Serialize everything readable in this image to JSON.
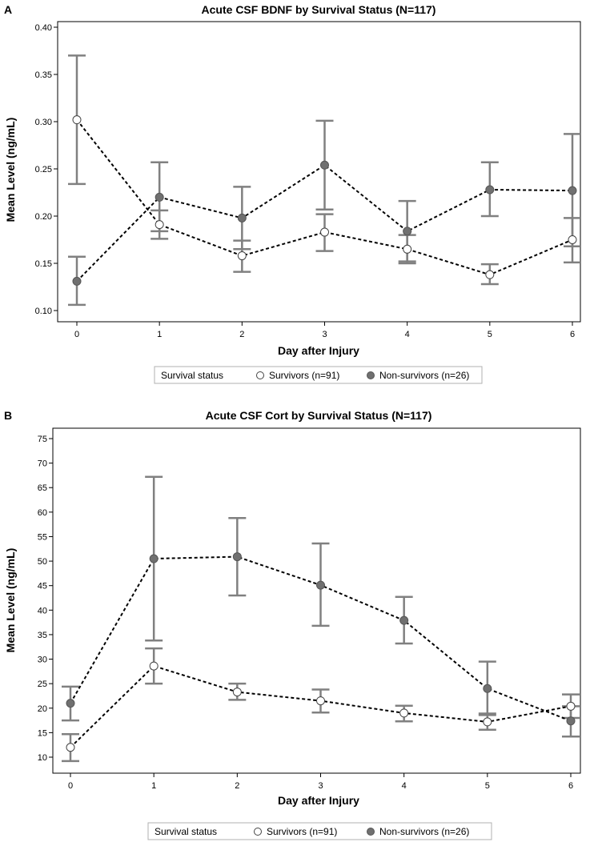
{
  "chart_data": [
    {
      "panel": "A",
      "type": "line",
      "title": "Acute CSF BDNF by Survival Status (N=117)",
      "xlabel": "Day after Injury",
      "ylabel": "Mean Level (ng/mL)",
      "xlim": [
        0,
        6
      ],
      "ylim": [
        0.1,
        0.4
      ],
      "xticks": [
        "0",
        "1",
        "2",
        "3",
        "4",
        "5",
        "6"
      ],
      "yticks": [
        "0.10",
        "0.15",
        "0.20",
        "0.25",
        "0.30",
        "0.35",
        "0.40"
      ],
      "x": [
        0,
        1,
        2,
        3,
        4,
        5,
        6
      ],
      "series": [
        {
          "name": "Survivors (n=91)",
          "marker": "open",
          "values": [
            0.302,
            0.191,
            0.158,
            0.183,
            0.165,
            0.138,
            0.175
          ],
          "lower": [
            0.234,
            0.176,
            0.141,
            0.163,
            0.15,
            0.128,
            0.151
          ],
          "upper": [
            0.37,
            0.206,
            0.174,
            0.202,
            0.18,
            0.149,
            0.198
          ]
        },
        {
          "name": "Non-survivors (n=26)",
          "marker": "filled",
          "values": [
            0.131,
            0.22,
            0.198,
            0.254,
            0.184,
            0.228,
            0.227
          ],
          "lower": [
            0.106,
            0.184,
            0.165,
            0.207,
            0.152,
            0.2,
            0.168
          ],
          "upper": [
            0.157,
            0.257,
            0.231,
            0.301,
            0.216,
            0.257,
            0.287
          ]
        }
      ],
      "legend": {
        "title": "Survival status",
        "placement": "bottom-center"
      }
    },
    {
      "panel": "B",
      "type": "line",
      "title": "Acute CSF Cort by Survival Status (N=117)",
      "xlabel": "Day after Injury",
      "ylabel": "Mean Level (ng/mL)",
      "xlim": [
        0,
        6
      ],
      "ylim": [
        10,
        75
      ],
      "xticks": [
        "0",
        "1",
        "2",
        "3",
        "4",
        "5",
        "6"
      ],
      "yticks": [
        "10",
        "15",
        "20",
        "25",
        "30",
        "35",
        "40",
        "45",
        "50",
        "55",
        "60",
        "65",
        "70",
        "75"
      ],
      "x": [
        0,
        1,
        2,
        3,
        4,
        5,
        6
      ],
      "series": [
        {
          "name": "Survivors (n=91)",
          "marker": "open",
          "values": [
            12.0,
            28.6,
            23.3,
            21.5,
            19.0,
            17.2,
            20.4
          ],
          "lower": [
            9.2,
            25.0,
            21.7,
            19.1,
            17.3,
            15.6,
            18.0
          ],
          "upper": [
            14.7,
            32.2,
            25.0,
            23.8,
            20.5,
            18.9,
            22.8
          ]
        },
        {
          "name": "Non-survivors (n=26)",
          "marker": "filled",
          "values": [
            21.0,
            50.5,
            50.9,
            45.1,
            37.9,
            24.0,
            17.4
          ],
          "lower": [
            17.5,
            33.8,
            43.0,
            36.8,
            33.2,
            18.6,
            14.2
          ],
          "upper": [
            24.4,
            67.2,
            58.8,
            53.6,
            42.7,
            29.5,
            20.4
          ]
        }
      ],
      "legend": {
        "title": "Survival status",
        "placement": "bottom-center"
      }
    }
  ],
  "colors": {
    "errorbar": "#808080",
    "line": "#000000",
    "filled_marker": "#707070",
    "frame": "#000000"
  }
}
